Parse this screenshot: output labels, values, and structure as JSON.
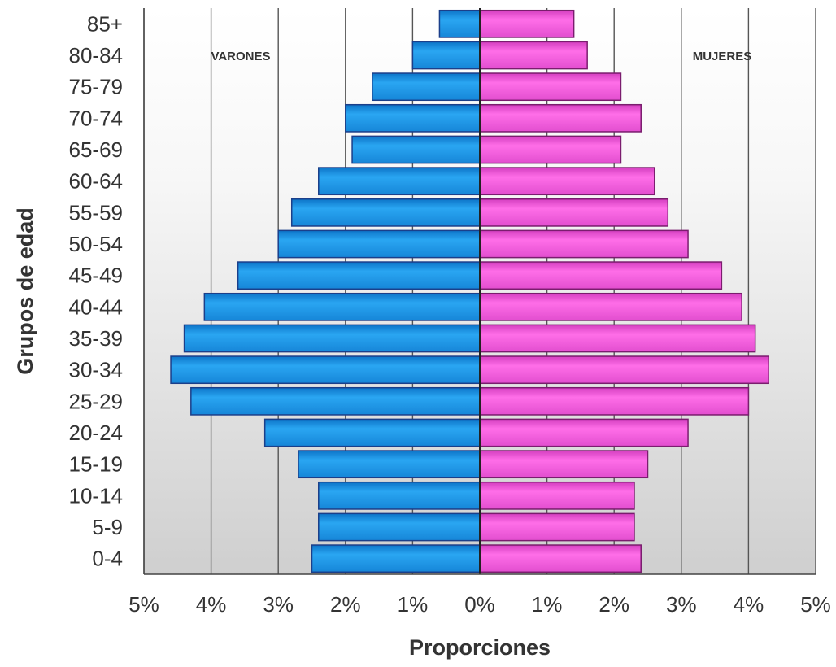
{
  "chart_data": {
    "type": "bar",
    "orientation": "horizontal-population-pyramid",
    "xlabel": "Proporciones",
    "ylabel": "Grupos de edad",
    "xlim": [
      -5,
      5
    ],
    "x_ticks": [
      -5,
      -4,
      -3,
      -2,
      -1,
      0,
      1,
      2,
      3,
      4,
      5
    ],
    "x_tick_labels": [
      "5%",
      "4%",
      "3%",
      "2%",
      "1%",
      "0%",
      "1%",
      "2%",
      "3%",
      "4%",
      "5%"
    ],
    "grid": "vertical",
    "categories": [
      "0-4",
      "5-9",
      "10-14",
      "15-19",
      "20-24",
      "25-29",
      "30-34",
      "35-39",
      "40-44",
      "45-49",
      "50-54",
      "55-59",
      "60-64",
      "65-69",
      "70-74",
      "75-79",
      "80-84",
      "85+"
    ],
    "series": [
      {
        "name": "VARONES",
        "color": "#2aa6f2",
        "values": [
          2.5,
          2.4,
          2.4,
          2.7,
          3.2,
          4.3,
          4.6,
          4.4,
          4.1,
          3.6,
          3.0,
          2.8,
          2.4,
          1.9,
          2.0,
          1.6,
          1.0,
          0.6
        ]
      },
      {
        "name": "MUJERES",
        "color": "#ff6ee8",
        "values": [
          2.4,
          2.3,
          2.3,
          2.5,
          3.1,
          4.0,
          4.3,
          4.1,
          3.9,
          3.6,
          3.1,
          2.8,
          2.6,
          2.1,
          2.4,
          2.1,
          1.6,
          1.4
        ]
      }
    ]
  }
}
